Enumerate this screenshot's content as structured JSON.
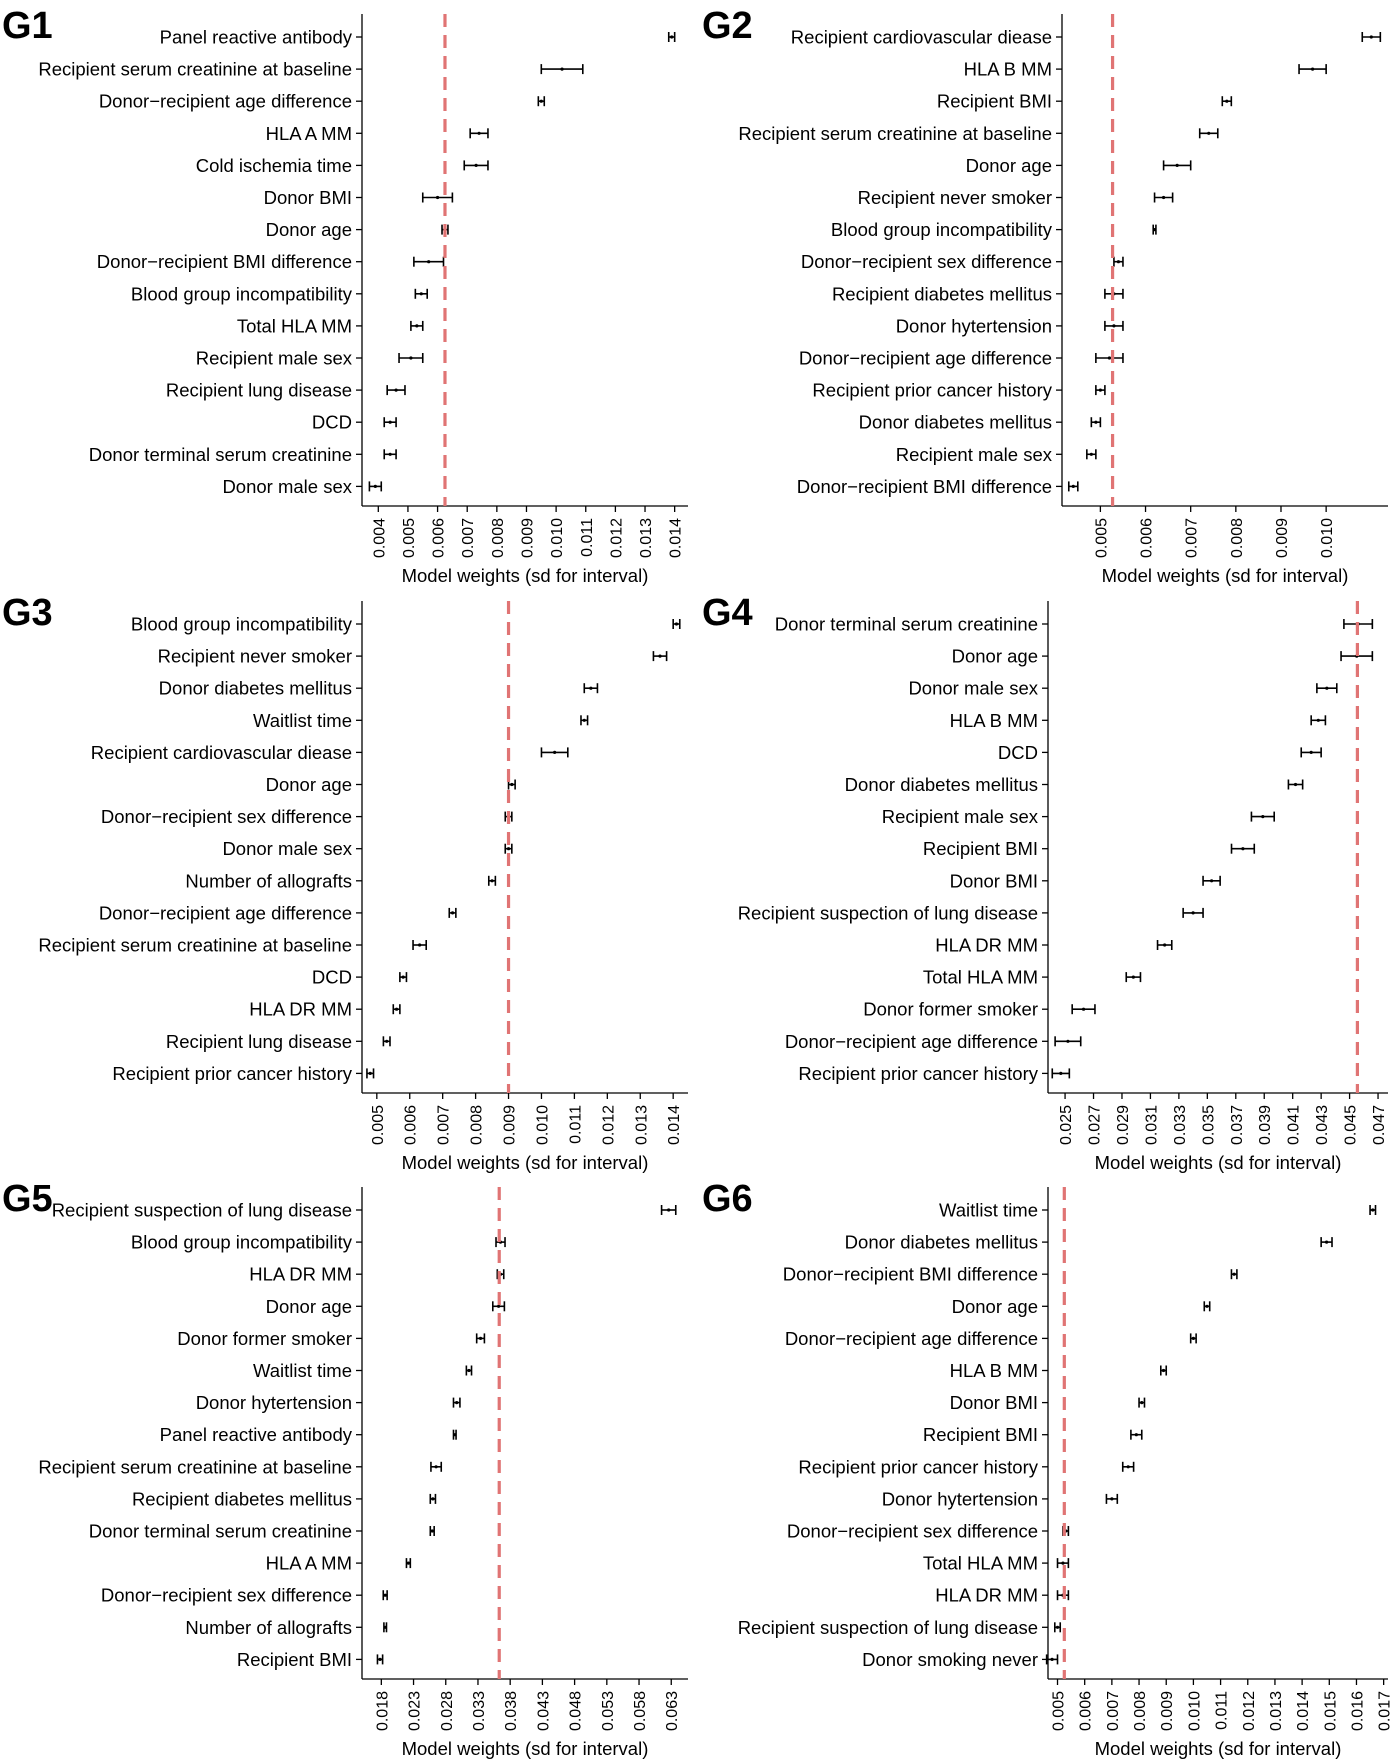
{
  "chart_data": [
    {
      "type": "errorbar",
      "panel": "G1",
      "xlabel": "Model weights (sd for interval)",
      "xlim": [
        0.00345,
        0.01445
      ],
      "xticks": [
        "0.004",
        "0.005",
        "0.006",
        "0.007",
        "0.008",
        "0.009",
        "0.010",
        "0.011",
        "0.012",
        "0.013",
        "0.014"
      ],
      "reference_line": 0.00625,
      "features": [
        {
          "label": "Panel reactive antibody",
          "mean": 0.0139,
          "sd": 0.0001
        },
        {
          "label": "Recipient serum creatinine at baseline",
          "mean": 0.0102,
          "sd": 0.0007
        },
        {
          "label": "Donor−recipient age difference",
          "mean": 0.0095,
          "sd": 0.0001
        },
        {
          "label": "HLA A MM",
          "mean": 0.0074,
          "sd": 0.0003
        },
        {
          "label": "Cold ischemia time",
          "mean": 0.0073,
          "sd": 0.0004
        },
        {
          "label": "Donor BMI",
          "mean": 0.006,
          "sd": 0.0005
        },
        {
          "label": "Donor age",
          "mean": 0.00625,
          "sd": 0.0001
        },
        {
          "label": "Donor−recipient BMI difference",
          "mean": 0.0057,
          "sd": 0.0005
        },
        {
          "label": "Blood group incompatibility",
          "mean": 0.00545,
          "sd": 0.0002
        },
        {
          "label": "Total HLA MM",
          "mean": 0.0053,
          "sd": 0.0002
        },
        {
          "label": "Recipient male sex",
          "mean": 0.0051,
          "sd": 0.0004
        },
        {
          "label": "Recipient lung disease",
          "mean": 0.0046,
          "sd": 0.0003
        },
        {
          "label": "DCD",
          "mean": 0.0044,
          "sd": 0.0002
        },
        {
          "label": "Donor terminal serum creatinine",
          "mean": 0.0044,
          "sd": 0.0002
        },
        {
          "label": "Donor male sex",
          "mean": 0.0039,
          "sd": 0.0002
        }
      ]
    },
    {
      "type": "errorbar",
      "panel": "G2",
      "xlabel": "Model weights (sd for interval)",
      "xlim": [
        0.00415,
        0.01137
      ],
      "xticks": [
        "0.005",
        "0.006",
        "0.007",
        "0.008",
        "0.009",
        "0.010"
      ],
      "reference_line": 0.00527,
      "features": [
        {
          "label": "Recipient cardiovascular diease",
          "mean": 0.011,
          "sd": 0.0002
        },
        {
          "label": "HLA B MM",
          "mean": 0.0097,
          "sd": 0.0003
        },
        {
          "label": "Recipient BMI",
          "mean": 0.0078,
          "sd": 0.0001
        },
        {
          "label": "Recipient serum creatinine at baseline",
          "mean": 0.0074,
          "sd": 0.0002
        },
        {
          "label": "Donor age",
          "mean": 0.0067,
          "sd": 0.0003
        },
        {
          "label": "Recipient never smoker",
          "mean": 0.0064,
          "sd": 0.0002
        },
        {
          "label": "Blood group incompatibility",
          "mean": 0.0062,
          "sd": 3e-05
        },
        {
          "label": "Donor−recipient sex difference",
          "mean": 0.0054,
          "sd": 0.0001
        },
        {
          "label": "Recipient diabetes mellitus",
          "mean": 0.0053,
          "sd": 0.0002
        },
        {
          "label": "Donor hytertension",
          "mean": 0.0053,
          "sd": 0.0002
        },
        {
          "label": "Donor−recipient age difference",
          "mean": 0.0052,
          "sd": 0.0003
        },
        {
          "label": "Recipient prior cancer history",
          "mean": 0.005,
          "sd": 0.0001
        },
        {
          "label": "Donor diabetes mellitus",
          "mean": 0.0049,
          "sd": 0.0001
        },
        {
          "label": "Recipient male sex",
          "mean": 0.0048,
          "sd": 0.0001
        },
        {
          "label": "Donor−recipient BMI difference",
          "mean": 0.0044,
          "sd": 0.0001
        }
      ]
    },
    {
      "type": "errorbar",
      "panel": "G3",
      "xlabel": "Model weights (sd for interval)",
      "xlim": [
        0.00455,
        0.01445
      ],
      "xticks": [
        "0.005",
        "0.006",
        "0.007",
        "0.008",
        "0.009",
        "0.010",
        "0.011",
        "0.012",
        "0.013",
        "0.014"
      ],
      "reference_line": 0.009,
      "features": [
        {
          "label": "Blood group incompatibility",
          "mean": 0.0141,
          "sd": 0.0001
        },
        {
          "label": "Recipient never smoker",
          "mean": 0.0136,
          "sd": 0.0002
        },
        {
          "label": "Donor diabetes mellitus",
          "mean": 0.0115,
          "sd": 0.0002
        },
        {
          "label": "Waitlist time",
          "mean": 0.0113,
          "sd": 0.0001
        },
        {
          "label": "Recipient cardiovascular diease",
          "mean": 0.0104,
          "sd": 0.0004
        },
        {
          "label": "Donor age",
          "mean": 0.0091,
          "sd": 0.0001
        },
        {
          "label": "Donor−recipient sex difference",
          "mean": 0.009,
          "sd": 0.0001
        },
        {
          "label": "Donor male sex",
          "mean": 0.009,
          "sd": 0.0001
        },
        {
          "label": "Number of allografts",
          "mean": 0.0085,
          "sd": 0.0001
        },
        {
          "label": "Donor−recipient age difference",
          "mean": 0.0073,
          "sd": 0.0001
        },
        {
          "label": "Recipient serum creatinine at baseline",
          "mean": 0.0063,
          "sd": 0.0002
        },
        {
          "label": "DCD",
          "mean": 0.0058,
          "sd": 0.0001
        },
        {
          "label": "HLA DR MM",
          "mean": 0.0056,
          "sd": 0.0001
        },
        {
          "label": "Recipient lung disease",
          "mean": 0.0053,
          "sd": 0.0001
        },
        {
          "label": "Recipient prior cancer history",
          "mean": 0.0048,
          "sd": 0.0001
        }
      ]
    },
    {
      "type": "errorbar",
      "panel": "G4",
      "xlabel": "Model weights (sd for interval)",
      "xlim": [
        0.0238,
        0.0477
      ],
      "xticks": [
        "0.025",
        "0.027",
        "0.029",
        "0.031",
        "0.033",
        "0.035",
        "0.037",
        "0.039",
        "0.041",
        "0.043",
        "0.045",
        "0.047"
      ],
      "reference_line": 0.04555,
      "features": [
        {
          "label": "Donor terminal serum creatinine",
          "mean": 0.0456,
          "sd": 0.001
        },
        {
          "label": "Donor age",
          "mean": 0.0455,
          "sd": 0.0011
        },
        {
          "label": "Donor male sex",
          "mean": 0.0434,
          "sd": 0.0007
        },
        {
          "label": "HLA B MM",
          "mean": 0.0428,
          "sd": 0.0005
        },
        {
          "label": "DCD",
          "mean": 0.0423,
          "sd": 0.0007
        },
        {
          "label": "Donor diabetes mellitus",
          "mean": 0.0412,
          "sd": 0.0005
        },
        {
          "label": "Recipient male sex",
          "mean": 0.0389,
          "sd": 0.0008
        },
        {
          "label": "Recipient BMI",
          "mean": 0.0375,
          "sd": 0.0008
        },
        {
          "label": "Donor BMI",
          "mean": 0.0353,
          "sd": 0.0006
        },
        {
          "label": "Recipient suspection of lung disease",
          "mean": 0.034,
          "sd": 0.0007
        },
        {
          "label": "HLA DR MM",
          "mean": 0.032,
          "sd": 0.0005
        },
        {
          "label": "Total HLA MM",
          "mean": 0.0298,
          "sd": 0.0005
        },
        {
          "label": "Donor former smoker",
          "mean": 0.0263,
          "sd": 0.0008
        },
        {
          "label": "Donor−recipient age difference",
          "mean": 0.0252,
          "sd": 0.0009
        },
        {
          "label": "Recipient prior cancer history",
          "mean": 0.0247,
          "sd": 0.0006
        }
      ]
    },
    {
      "type": "errorbar",
      "panel": "G5",
      "xlabel": "Model weights (sd for interval)",
      "xlim": [
        0.015,
        0.0656
      ],
      "xticks": [
        "0.018",
        "0.023",
        "0.028",
        "0.033",
        "0.038",
        "0.043",
        "0.048",
        "0.053",
        "0.058",
        "0.063"
      ],
      "reference_line": 0.0363,
      "features": [
        {
          "label": "Recipient suspection of lung disease",
          "mean": 0.0626,
          "sd": 0.0011
        },
        {
          "label": "Blood group incompatibility",
          "mean": 0.0365,
          "sd": 0.0007
        },
        {
          "label": "HLA DR MM",
          "mean": 0.0365,
          "sd": 0.0005
        },
        {
          "label": "Donor age",
          "mean": 0.0362,
          "sd": 0.0009
        },
        {
          "label": "Donor former smoker",
          "mean": 0.0334,
          "sd": 0.0006
        },
        {
          "label": "Waitlist time",
          "mean": 0.0316,
          "sd": 0.0004
        },
        {
          "label": "Donor hytertension",
          "mean": 0.0297,
          "sd": 0.0005
        },
        {
          "label": "Panel reactive antibody",
          "mean": 0.0294,
          "sd": 0.0002
        },
        {
          "label": "Recipient serum creatinine at baseline",
          "mean": 0.0265,
          "sd": 0.0008
        },
        {
          "label": "Recipient diabetes mellitus",
          "mean": 0.026,
          "sd": 0.0004
        },
        {
          "label": "Donor terminal serum creatinine",
          "mean": 0.0259,
          "sd": 0.0003
        },
        {
          "label": "HLA A MM",
          "mean": 0.0222,
          "sd": 0.0003
        },
        {
          "label": "Donor−recipient sex difference",
          "mean": 0.0186,
          "sd": 0.0003
        },
        {
          "label": "Number of allografts",
          "mean": 0.0186,
          "sd": 0.0002
        },
        {
          "label": "Recipient BMI",
          "mean": 0.0178,
          "sd": 0.0004
        }
      ]
    },
    {
      "type": "errorbar",
      "panel": "G6",
      "xlabel": "Model weights (sd for interval)",
      "xlim": [
        0.00465,
        0.01716
      ],
      "xticks": [
        "0.005",
        "0.006",
        "0.007",
        "0.008",
        "0.009",
        "0.010",
        "0.011",
        "0.012",
        "0.013",
        "0.014",
        "0.015",
        "0.016",
        "0.017"
      ],
      "reference_line": 0.00525,
      "features": [
        {
          "label": "Waitlist time",
          "mean": 0.0166,
          "sd": 0.0001
        },
        {
          "label": "Donor diabetes mellitus",
          "mean": 0.0149,
          "sd": 0.0002
        },
        {
          "label": "Donor−recipient BMI difference",
          "mean": 0.0115,
          "sd": 0.0001
        },
        {
          "label": "Donor age",
          "mean": 0.0105,
          "sd": 0.0001
        },
        {
          "label": "Donor−recipient age difference",
          "mean": 0.01,
          "sd": 0.0001
        },
        {
          "label": "HLA B MM",
          "mean": 0.0089,
          "sd": 0.0001
        },
        {
          "label": "Donor BMI",
          "mean": 0.0081,
          "sd": 0.0001
        },
        {
          "label": "Recipient BMI",
          "mean": 0.0079,
          "sd": 0.0002
        },
        {
          "label": "Recipient prior cancer history",
          "mean": 0.0076,
          "sd": 0.0002
        },
        {
          "label": "Donor hytertension",
          "mean": 0.007,
          "sd": 0.0002
        },
        {
          "label": "Donor−recipient sex difference",
          "mean": 0.0053,
          "sd": 0.0001
        },
        {
          "label": "Total HLA MM",
          "mean": 0.0052,
          "sd": 0.0002
        },
        {
          "label": "HLA DR MM",
          "mean": 0.0052,
          "sd": 0.0002
        },
        {
          "label": "Recipient suspection of lung disease",
          "mean": 0.005,
          "sd": 0.0001
        },
        {
          "label": "Donor smoking never",
          "mean": 0.0048,
          "sd": 0.0002
        }
      ]
    }
  ],
  "colors": {
    "reference_line": "#e07474",
    "error_bar": "#000000",
    "axis": "#000000"
  }
}
